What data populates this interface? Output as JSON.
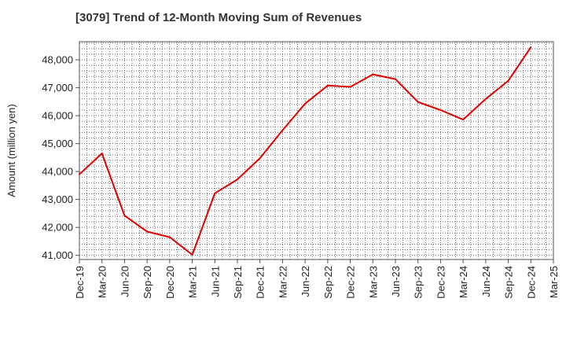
{
  "chart_data": {
    "type": "line",
    "title": "[3079]  Trend of 12-Month Moving Sum of Revenues",
    "xlabel": "",
    "ylabel": "Amount (million yen)",
    "x": [
      "Dec-19",
      "Mar-20",
      "Jun-20",
      "Sep-20",
      "Dec-20",
      "Mar-21",
      "Jun-21",
      "Sep-21",
      "Dec-21",
      "Mar-22",
      "Jun-22",
      "Sep-22",
      "Dec-22",
      "Mar-23",
      "Jun-23",
      "Sep-23",
      "Dec-23",
      "Mar-24",
      "Jun-24",
      "Sep-24",
      "Dec-24"
    ],
    "x_tick_labels": [
      "Dec-19",
      "Mar-20",
      "Jun-20",
      "Sep-20",
      "Dec-20",
      "Mar-21",
      "Jun-21",
      "Sep-21",
      "Dec-21",
      "Mar-22",
      "Jun-22",
      "Sep-22",
      "Dec-22",
      "Mar-23",
      "Jun-23",
      "Sep-23",
      "Dec-23",
      "Mar-24",
      "Jun-24",
      "Sep-24",
      "Dec-24",
      "Mar-25"
    ],
    "series": [
      {
        "color": "#e00000",
        "values": [
          43900,
          44650,
          42420,
          41850,
          41650,
          41020,
          43220,
          43720,
          44480,
          45480,
          46430,
          47080,
          47030,
          47480,
          47310,
          46490,
          46200,
          45860,
          46600,
          47250,
          48450
        ]
      }
    ],
    "y_ticks": [
      41000,
      42000,
      43000,
      44000,
      45000,
      46000,
      47000,
      48000
    ],
    "y_tick_labels": [
      "41,000",
      "42,000",
      "43,000",
      "44,000",
      "45,000",
      "46,000",
      "47,000",
      "48,000"
    ],
    "ylim": [
      40850,
      48650
    ],
    "grid": true,
    "legend": "none"
  }
}
